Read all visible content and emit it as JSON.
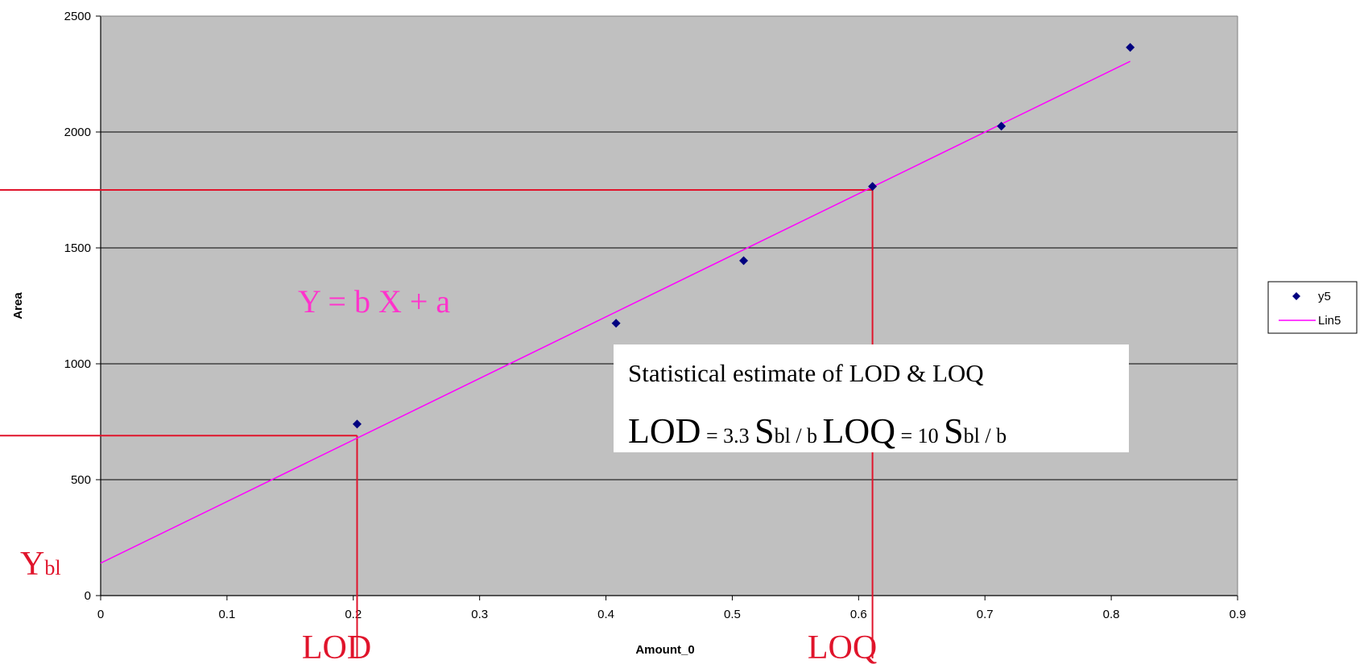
{
  "chart_data": {
    "type": "scatter",
    "xlabel": "Amount_0",
    "ylabel": "Area",
    "xlim": [
      0,
      0.9
    ],
    "ylim": [
      0,
      2500
    ],
    "x_ticks": [
      "0",
      "0.1",
      "0.2",
      "0.3",
      "0.4",
      "0.5",
      "0.6",
      "0.7",
      "0.8",
      "0.9"
    ],
    "y_ticks": [
      "0",
      "500",
      "1000",
      "1500",
      "2000",
      "2500"
    ],
    "grid": "horizontal",
    "plot_background": "#c0c0c0",
    "legend_position": "right",
    "series": [
      {
        "name": "y5",
        "kind": "points",
        "marker": "diamond",
        "color": "#000080",
        "x": [
          0.203,
          0.408,
          0.509,
          0.611,
          0.713,
          0.815
        ],
        "y": [
          740,
          1175,
          1445,
          1765,
          2025,
          2365
        ]
      },
      {
        "name": "Lin5",
        "kind": "line",
        "color": "#ff00ff",
        "x": [
          0,
          0.815
        ],
        "y": [
          140,
          2305
        ]
      }
    ],
    "reference_lines": {
      "color": "#e0142b",
      "lod": {
        "x": 0.203,
        "y": 690
      },
      "loq": {
        "x": 0.611,
        "y": 1750
      }
    }
  },
  "annotations": {
    "equation": "Y = b X + a",
    "equation_color": "#ff33cc",
    "ybl_main": "Y",
    "ybl_sub": "bl",
    "lod_label": "LOD",
    "loq_label": "LOQ",
    "label_color": "#e0142b",
    "box": {
      "title": "Statistical estimate of LOD & LOQ",
      "lod_big": "LOD",
      "lod_eq": " = 3.3 ",
      "s1_big": "S",
      "s1_tail": "bl / b ",
      "loq_big": "LOQ",
      "loq_eq": " = 10 ",
      "s2_big": "S",
      "s2_tail": "bl / b"
    }
  }
}
